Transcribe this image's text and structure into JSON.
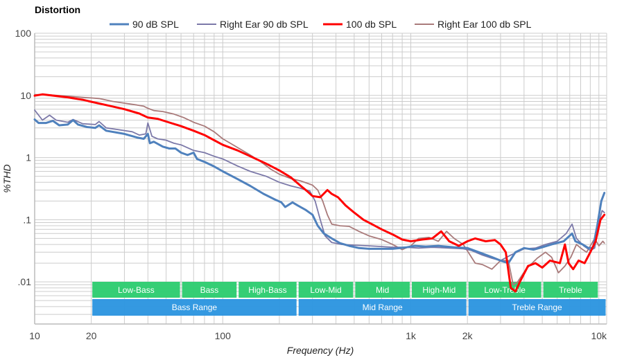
{
  "chart_data": {
    "type": "line",
    "title": "Distortion",
    "xlabel": "Frequency (Hz)",
    "ylabel": "%THD",
    "xscale": "log",
    "yscale": "log",
    "xlim": [
      10,
      11000
    ],
    "ylim": [
      0.0021,
      100
    ],
    "grid": true,
    "legend_position": "top",
    "x_ticks": [
      {
        "value": 10,
        "label": "10"
      },
      {
        "value": 20,
        "label": "20"
      },
      {
        "value": 100,
        "label": "100"
      },
      {
        "value": 1000,
        "label": "1k"
      },
      {
        "value": 2000,
        "label": "2k"
      },
      {
        "value": 10000,
        "label": "10k"
      }
    ],
    "y_ticks": [
      {
        "value": 100,
        "label": "100"
      },
      {
        "value": 10,
        "label": "10"
      },
      {
        "value": 1,
        "label": "1"
      },
      {
        "value": 0.1,
        "label": ".1"
      },
      {
        "value": 0.01,
        "label": ".01"
      }
    ],
    "series": [
      {
        "name": "90 dB SPL",
        "color": "#4f81bd",
        "weight": "thick",
        "points": [
          [
            10,
            4.1
          ],
          [
            10.5,
            3.6
          ],
          [
            11.5,
            3.6
          ],
          [
            12.5,
            3.9
          ],
          [
            13.5,
            3.3
          ],
          [
            15,
            3.4
          ],
          [
            16,
            4.0
          ],
          [
            17,
            3.4
          ],
          [
            19,
            3.1
          ],
          [
            21,
            3.0
          ],
          [
            22,
            3.3
          ],
          [
            24,
            2.7
          ],
          [
            30,
            2.4
          ],
          [
            35,
            2.1
          ],
          [
            38,
            2.0
          ],
          [
            40,
            2.4
          ],
          [
            41,
            1.7
          ],
          [
            43,
            1.8
          ],
          [
            48,
            1.5
          ],
          [
            52,
            1.4
          ],
          [
            56,
            1.4
          ],
          [
            60,
            1.2
          ],
          [
            65,
            1.1
          ],
          [
            70,
            1.2
          ],
          [
            73,
            0.95
          ],
          [
            80,
            0.85
          ],
          [
            90,
            0.72
          ],
          [
            100,
            0.6
          ],
          [
            120,
            0.45
          ],
          [
            140,
            0.35
          ],
          [
            165,
            0.26
          ],
          [
            190,
            0.21
          ],
          [
            205,
            0.19
          ],
          [
            215,
            0.16
          ],
          [
            235,
            0.19
          ],
          [
            250,
            0.17
          ],
          [
            275,
            0.145
          ],
          [
            300,
            0.12
          ],
          [
            320,
            0.08
          ],
          [
            345,
            0.06
          ],
          [
            380,
            0.05
          ],
          [
            420,
            0.042
          ],
          [
            470,
            0.038
          ],
          [
            530,
            0.035
          ],
          [
            600,
            0.034
          ],
          [
            700,
            0.034
          ],
          [
            800,
            0.034
          ],
          [
            950,
            0.036
          ],
          [
            1050,
            0.038
          ],
          [
            1200,
            0.037
          ],
          [
            1400,
            0.038
          ],
          [
            1700,
            0.036
          ],
          [
            2000,
            0.035
          ],
          [
            2300,
            0.03
          ],
          [
            2700,
            0.025
          ],
          [
            3000,
            0.022
          ],
          [
            3300,
            0.02
          ],
          [
            3600,
            0.03
          ],
          [
            4000,
            0.035
          ],
          [
            4500,
            0.033
          ],
          [
            5000,
            0.036
          ],
          [
            5600,
            0.04
          ],
          [
            6500,
            0.045
          ],
          [
            7200,
            0.06
          ],
          [
            7500,
            0.045
          ],
          [
            8200,
            0.04
          ],
          [
            8800,
            0.035
          ],
          [
            9300,
            0.035
          ],
          [
            9800,
            0.08
          ],
          [
            10300,
            0.2
          ],
          [
            10700,
            0.27
          ]
        ]
      },
      {
        "name": "Right Ear 90 db SPL",
        "color": "#7b78a8",
        "weight": "thin",
        "points": [
          [
            10,
            5.8
          ],
          [
            11,
            4.0
          ],
          [
            12,
            4.8
          ],
          [
            13,
            4.0
          ],
          [
            15,
            3.7
          ],
          [
            16,
            4.1
          ],
          [
            18,
            3.5
          ],
          [
            21,
            3.4
          ],
          [
            22,
            3.8
          ],
          [
            24,
            3.0
          ],
          [
            28,
            2.8
          ],
          [
            33,
            2.6
          ],
          [
            36,
            2.3
          ],
          [
            39,
            2.4
          ],
          [
            40,
            3.6
          ],
          [
            42,
            2.2
          ],
          [
            45,
            2.0
          ],
          [
            50,
            1.9
          ],
          [
            55,
            1.7
          ],
          [
            60,
            1.6
          ],
          [
            70,
            1.3
          ],
          [
            80,
            1.2
          ],
          [
            90,
            1.05
          ],
          [
            100,
            0.95
          ],
          [
            120,
            0.73
          ],
          [
            140,
            0.6
          ],
          [
            170,
            0.5
          ],
          [
            200,
            0.4
          ],
          [
            230,
            0.35
          ],
          [
            260,
            0.32
          ],
          [
            290,
            0.29
          ],
          [
            310,
            0.2
          ],
          [
            330,
            0.1
          ],
          [
            350,
            0.055
          ],
          [
            380,
            0.043
          ],
          [
            430,
            0.04
          ],
          [
            500,
            0.039
          ],
          [
            600,
            0.038
          ],
          [
            700,
            0.037
          ],
          [
            800,
            0.036
          ],
          [
            950,
            0.036
          ],
          [
            1100,
            0.035
          ],
          [
            1300,
            0.036
          ],
          [
            1600,
            0.035
          ],
          [
            1900,
            0.034
          ],
          [
            2100,
            0.032
          ],
          [
            2400,
            0.027
          ],
          [
            2700,
            0.024
          ],
          [
            3000,
            0.022
          ],
          [
            3400,
            0.027
          ],
          [
            4000,
            0.034
          ],
          [
            4600,
            0.035
          ],
          [
            5200,
            0.04
          ],
          [
            6000,
            0.045
          ],
          [
            6700,
            0.06
          ],
          [
            7200,
            0.085
          ],
          [
            7600,
            0.05
          ],
          [
            8300,
            0.038
          ],
          [
            9000,
            0.032
          ],
          [
            9500,
            0.035
          ],
          [
            10000,
            0.09
          ],
          [
            10400,
            0.14
          ],
          [
            10700,
            0.13
          ]
        ]
      },
      {
        "name": "100 db SPL",
        "color": "#ff0000",
        "weight": "thick",
        "points": [
          [
            10,
            9.9
          ],
          [
            11,
            10.4
          ],
          [
            13,
            9.8
          ],
          [
            15,
            9.3
          ],
          [
            18,
            8.5
          ],
          [
            20,
            7.9
          ],
          [
            25,
            6.8
          ],
          [
            30,
            6.0
          ],
          [
            36,
            5.1
          ],
          [
            40,
            4.4
          ],
          [
            45,
            4.2
          ],
          [
            50,
            3.8
          ],
          [
            60,
            3.2
          ],
          [
            70,
            2.7
          ],
          [
            80,
            2.3
          ],
          [
            90,
            1.9
          ],
          [
            100,
            1.6
          ],
          [
            120,
            1.3
          ],
          [
            140,
            1.05
          ],
          [
            170,
            0.8
          ],
          [
            200,
            0.62
          ],
          [
            230,
            0.48
          ],
          [
            260,
            0.35
          ],
          [
            280,
            0.29
          ],
          [
            300,
            0.24
          ],
          [
            330,
            0.23
          ],
          [
            360,
            0.3
          ],
          [
            380,
            0.26
          ],
          [
            410,
            0.23
          ],
          [
            450,
            0.17
          ],
          [
            500,
            0.13
          ],
          [
            560,
            0.1
          ],
          [
            620,
            0.085
          ],
          [
            700,
            0.07
          ],
          [
            800,
            0.058
          ],
          [
            900,
            0.048
          ],
          [
            1000,
            0.045
          ],
          [
            1150,
            0.048
          ],
          [
            1300,
            0.05
          ],
          [
            1450,
            0.065
          ],
          [
            1600,
            0.045
          ],
          [
            1800,
            0.038
          ],
          [
            2000,
            0.045
          ],
          [
            2200,
            0.05
          ],
          [
            2500,
            0.045
          ],
          [
            2800,
            0.047
          ],
          [
            3000,
            0.04
          ],
          [
            3200,
            0.03
          ],
          [
            3400,
            0.008
          ],
          [
            3600,
            0.007
          ],
          [
            3800,
            0.01
          ],
          [
            4200,
            0.018
          ],
          [
            4600,
            0.02
          ],
          [
            5000,
            0.017
          ],
          [
            5500,
            0.022
          ],
          [
            6200,
            0.02
          ],
          [
            6600,
            0.04
          ],
          [
            6900,
            0.02
          ],
          [
            7300,
            0.016
          ],
          [
            7800,
            0.022
          ],
          [
            8400,
            0.02
          ],
          [
            9000,
            0.03
          ],
          [
            9600,
            0.045
          ],
          [
            10200,
            0.1
          ],
          [
            10700,
            0.12
          ]
        ]
      },
      {
        "name": "Right Ear 100 db SPL",
        "color": "#a97a7a",
        "weight": "thin",
        "points": [
          [
            10,
            10.3
          ],
          [
            12,
            10.2
          ],
          [
            15,
            9.7
          ],
          [
            18,
            9.3
          ],
          [
            22,
            8.9
          ],
          [
            26,
            8.0
          ],
          [
            30,
            7.5
          ],
          [
            35,
            7.0
          ],
          [
            38,
            6.7
          ],
          [
            40,
            6.2
          ],
          [
            43,
            5.7
          ],
          [
            48,
            5.5
          ],
          [
            55,
            5.0
          ],
          [
            62,
            4.4
          ],
          [
            70,
            3.7
          ],
          [
            80,
            3.2
          ],
          [
            90,
            2.6
          ],
          [
            100,
            2.0
          ],
          [
            120,
            1.45
          ],
          [
            140,
            1.1
          ],
          [
            160,
            0.85
          ],
          [
            180,
            0.65
          ],
          [
            200,
            0.54
          ],
          [
            230,
            0.46
          ],
          [
            260,
            0.42
          ],
          [
            300,
            0.36
          ],
          [
            320,
            0.3
          ],
          [
            340,
            0.2
          ],
          [
            360,
            0.12
          ],
          [
            380,
            0.085
          ],
          [
            420,
            0.08
          ],
          [
            470,
            0.078
          ],
          [
            530,
            0.065
          ],
          [
            600,
            0.055
          ],
          [
            700,
            0.048
          ],
          [
            800,
            0.04
          ],
          [
            900,
            0.033
          ],
          [
            1000,
            0.038
          ],
          [
            1100,
            0.05
          ],
          [
            1250,
            0.052
          ],
          [
            1400,
            0.045
          ],
          [
            1550,
            0.065
          ],
          [
            1700,
            0.05
          ],
          [
            1900,
            0.04
          ],
          [
            2050,
            0.028
          ],
          [
            2200,
            0.02
          ],
          [
            2400,
            0.019
          ],
          [
            2700,
            0.016
          ],
          [
            3000,
            0.022
          ],
          [
            3300,
            0.022
          ],
          [
            3500,
            0.009
          ],
          [
            3700,
            0.01
          ],
          [
            4100,
            0.016
          ],
          [
            4700,
            0.024
          ],
          [
            5200,
            0.03
          ],
          [
            5600,
            0.025
          ],
          [
            6100,
            0.014
          ],
          [
            6600,
            0.018
          ],
          [
            7100,
            0.025
          ],
          [
            7600,
            0.04
          ],
          [
            8100,
            0.034
          ],
          [
            8600,
            0.03
          ],
          [
            9100,
            0.04
          ],
          [
            9500,
            0.05
          ],
          [
            10000,
            0.038
          ],
          [
            10500,
            0.045
          ],
          [
            10700,
            0.042
          ]
        ]
      }
    ],
    "bands_top": [
      {
        "label": "Low-Bass",
        "from": 20,
        "to": 60
      },
      {
        "label": "Bass",
        "from": 60,
        "to": 120
      },
      {
        "label": "High-Bass",
        "from": 120,
        "to": 250
      },
      {
        "label": "Low-Mid",
        "from": 250,
        "to": 500
      },
      {
        "label": "Mid",
        "from": 500,
        "to": 1000
      },
      {
        "label": "High-Mid",
        "from": 1000,
        "to": 2000
      },
      {
        "label": "Low-Treble",
        "from": 2000,
        "to": 5000
      },
      {
        "label": "Treble",
        "from": 5000,
        "to": 10000
      }
    ],
    "bands_bottom": [
      {
        "label": "Bass Range",
        "from": 20,
        "to": 250
      },
      {
        "label": "Mid Range",
        "from": 250,
        "to": 2000
      },
      {
        "label": "Treble Range",
        "from": 2000,
        "to": 11000
      }
    ],
    "band_colors": {
      "top": "#2ecc71",
      "bottom": "#2d96e0"
    }
  }
}
